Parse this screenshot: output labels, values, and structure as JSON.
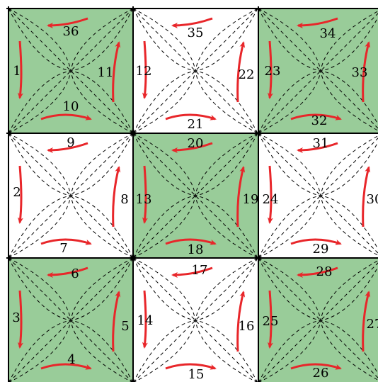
{
  "colors": {
    "green_fill": "#99cc99",
    "white_fill": "#ffffff",
    "arrow": "#e8262a",
    "line": "#000000"
  },
  "cells": [
    {
      "id": "r0c0",
      "fill": "green",
      "labels": {
        "top": "36",
        "left": "1",
        "right": "11",
        "bottom": "10"
      }
    },
    {
      "id": "r0c1",
      "fill": "white",
      "labels": {
        "top": "35",
        "left": "12",
        "right": "22",
        "bottom": "21"
      }
    },
    {
      "id": "r0c2",
      "fill": "green",
      "labels": {
        "top": "34",
        "left": "23",
        "right": "33",
        "bottom": "32"
      }
    },
    {
      "id": "r1c0",
      "fill": "white",
      "labels": {
        "top": "9",
        "left": "2",
        "right": "8",
        "bottom": "7"
      }
    },
    {
      "id": "r1c1",
      "fill": "green",
      "labels": {
        "top": "20",
        "left": "13",
        "right": "19",
        "bottom": "18"
      }
    },
    {
      "id": "r1c2",
      "fill": "white",
      "labels": {
        "top": "31",
        "left": "24",
        "right": "30",
        "bottom": "29"
      }
    },
    {
      "id": "r2c0",
      "fill": "green",
      "labels": {
        "top": "6",
        "left": "3",
        "right": "5",
        "bottom": "4"
      }
    },
    {
      "id": "r2c1",
      "fill": "white",
      "labels": {
        "top": "17",
        "left": "14",
        "right": "16",
        "bottom": "15"
      }
    },
    {
      "id": "r2c2",
      "fill": "green",
      "labels": {
        "top": "28",
        "left": "25",
        "right": "27",
        "bottom": "26"
      }
    }
  ]
}
